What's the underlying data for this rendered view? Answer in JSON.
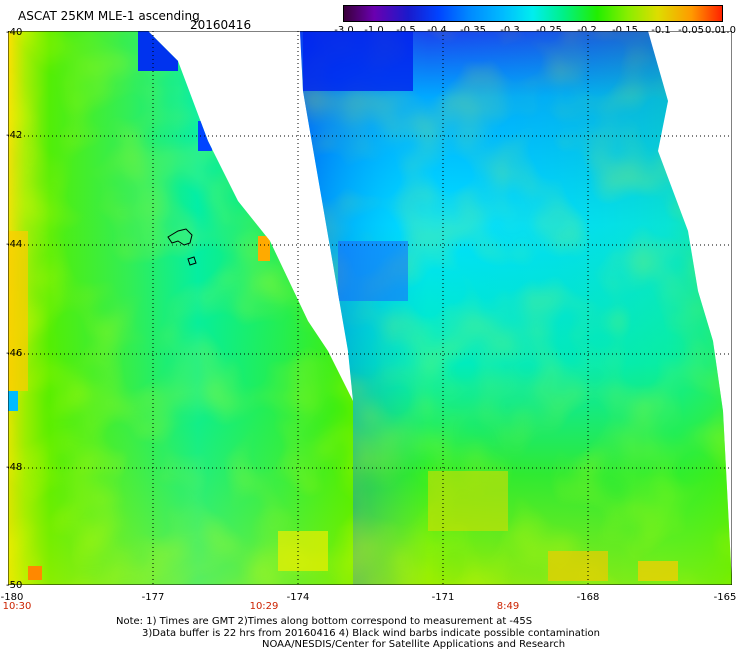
{
  "header": {
    "title": "ASCAT 25KM MLE-1 ascending",
    "date": "20160416"
  },
  "colorbar": {
    "labels": [
      "-3.0",
      "-1.0",
      "-0.5",
      "-0.4",
      "-0.35",
      "-0.3",
      "-0.25",
      "-0.2",
      "-0.15",
      "-0.1",
      "-0.05",
      "0.0",
      "1.0"
    ],
    "colors": [
      "#3a003a",
      "#6a00b0",
      "#1a1acc",
      "#0044ff",
      "#0088ff",
      "#00bbff",
      "#00eeee",
      "#00f088",
      "#22ee00",
      "#88ee00",
      "#dddd00",
      "#ff9900",
      "#ff2200"
    ]
  },
  "map": {
    "lat_labels": [
      "-40",
      "-42",
      "-44",
      "-46",
      "-48",
      "-50"
    ],
    "lon_labels": [
      "-180",
      "-177",
      "-174",
      "-171",
      "-168",
      "-165"
    ],
    "lat_range": [
      -50,
      -40
    ],
    "lon_range": [
      -180,
      -165
    ],
    "pass_times": [
      "10:30",
      "10:29",
      "8:49"
    ],
    "grid": "dotted"
  },
  "notes": [
    "Note: 1) Times are GMT 2)Times along bottom correspond to measurement at -45S",
    "3)Data buffer is 22 hrs from 20160416 4) Black wind barbs indicate possible contamination",
    "NOAA/NESDIS/Center for Satellite Applications and Research"
  ]
}
